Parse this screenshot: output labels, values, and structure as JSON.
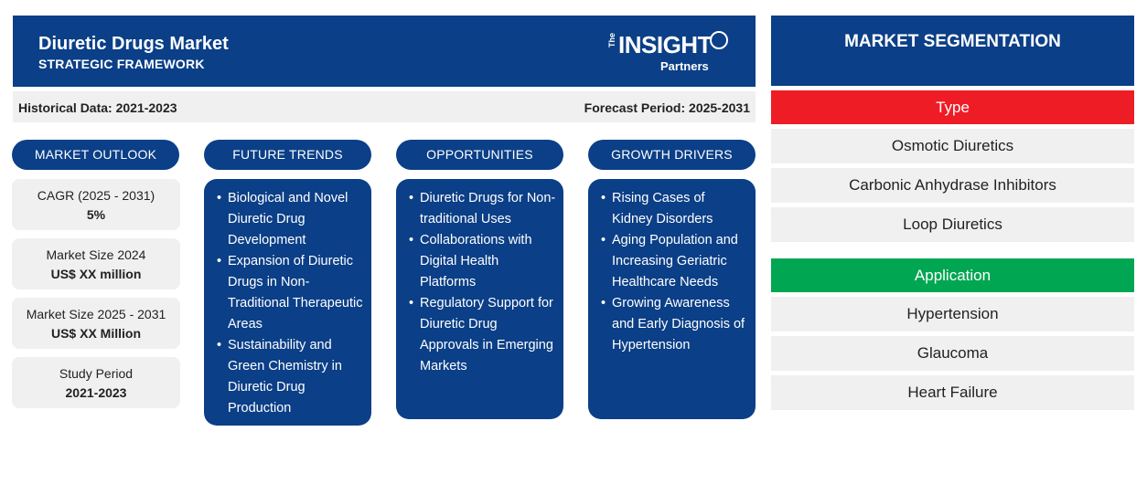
{
  "header": {
    "title": "Diuretic Drugs Market",
    "subtitle": "STRATEGIC FRAMEWORK",
    "logo": {
      "the": "The",
      "insight": "INSIGHT",
      "partners": "Partners"
    }
  },
  "periods": {
    "historical": "Historical Data: 2021-2023",
    "forecast": "Forecast Period: 2025-2031"
  },
  "market_outlook": {
    "heading": "MARKET OUTLOOK",
    "items": [
      {
        "label": "CAGR (2025 - 2031)",
        "value": "5%"
      },
      {
        "label": "Market Size 2024",
        "value": "US$ XX million"
      },
      {
        "label": "Market Size 2025 - 2031",
        "value": "US$ XX Million"
      },
      {
        "label": "Study Period",
        "value": "2021-2023"
      }
    ]
  },
  "future_trends": {
    "heading": "FUTURE TRENDS",
    "items": [
      "Biological and Novel Diuretic Drug Development",
      "Expansion of Diuretic Drugs in Non-Traditional Therapeutic Areas",
      "Sustainability and Green Chemistry in Diuretic Drug Production"
    ]
  },
  "opportunities": {
    "heading": "OPPORTUNITIES",
    "items": [
      "Diuretic Drugs for Non-traditional Uses",
      "Collaborations with Digital Health Platforms",
      "Regulatory Support for Diuretic Drug Approvals in Emerging Markets"
    ]
  },
  "growth_drivers": {
    "heading": "GROWTH DRIVERS",
    "items": [
      "Rising Cases of Kidney Disorders",
      "Aging Population and Increasing Geriatric Healthcare Needs",
      "Growing Awareness and Early Diagnosis of Hypertension"
    ]
  },
  "segmentation": {
    "title": "MARKET SEGMENTATION",
    "groups": [
      {
        "heading": "Type",
        "color": "#ee1c25",
        "items": [
          "Osmotic Diuretics",
          "Carbonic Anhydrase Inhibitors",
          "Loop Diuretics"
        ]
      },
      {
        "heading": "Application",
        "color": "#00a651",
        "items": [
          "Hypertension",
          "Glaucoma",
          "Heart Failure"
        ]
      }
    ]
  },
  "colors": {
    "brand_blue": "#0b3f87",
    "panel_grey": "#f0f0f0"
  }
}
